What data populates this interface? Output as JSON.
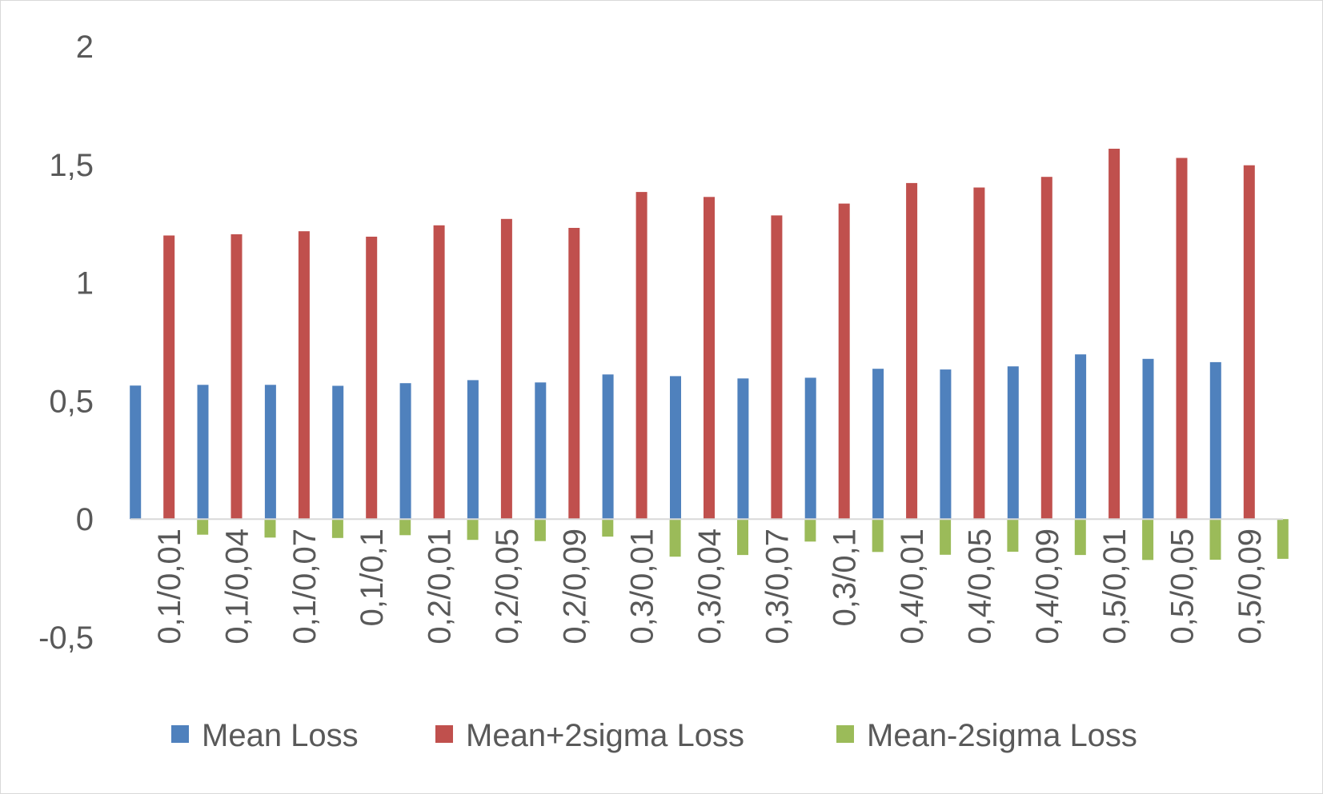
{
  "chart_data": {
    "type": "bar",
    "title": "",
    "xlabel": "",
    "ylabel": "",
    "ylim": [
      -0.5,
      2
    ],
    "yticks": [
      -0.5,
      0,
      0.5,
      1,
      1.5,
      2
    ],
    "ytick_labels": [
      "-0,5",
      "0",
      "0,5",
      "1",
      "1,5",
      "2"
    ],
    "grid": false,
    "legend_position": "bottom",
    "categories": [
      "0,1/0,01",
      "0,1/0,04",
      "0,1/0,07",
      "0,1/0,1",
      "0,2/0,01",
      "0,2/0,05",
      "0,2/0,09",
      "0,3/0,01",
      "0,3/0,04",
      "0,3/0,07",
      "0,3/0,1",
      "0,4/0,01",
      "0,4/0,05",
      "0,4/0,09",
      "0,5/0,01",
      "0,5/0,05",
      "0,5/0,09"
    ],
    "series": [
      {
        "name": "Mean Loss",
        "color": "#4f81bd",
        "values": [
          0.565,
          0.568,
          0.568,
          0.564,
          0.575,
          0.588,
          0.578,
          0.612,
          0.605,
          0.595,
          0.598,
          0.636,
          0.633,
          0.646,
          0.697,
          0.678,
          0.664
        ]
      },
      {
        "name": "Mean+2sigma Loss",
        "color": "#c0504d",
        "values": [
          1.2,
          1.205,
          1.218,
          1.195,
          1.243,
          1.27,
          1.232,
          1.384,
          1.363,
          1.285,
          1.335,
          1.422,
          1.403,
          1.448,
          1.567,
          1.528,
          1.497
        ]
      },
      {
        "name": "Mean-2sigma Loss",
        "color": "#9bbb59",
        "values": [
          -0.066,
          -0.078,
          -0.08,
          -0.068,
          -0.088,
          -0.093,
          -0.074,
          -0.159,
          -0.152,
          -0.095,
          -0.139,
          -0.151,
          -0.138,
          -0.152,
          -0.173,
          -0.172,
          -0.168
        ]
      }
    ]
  }
}
